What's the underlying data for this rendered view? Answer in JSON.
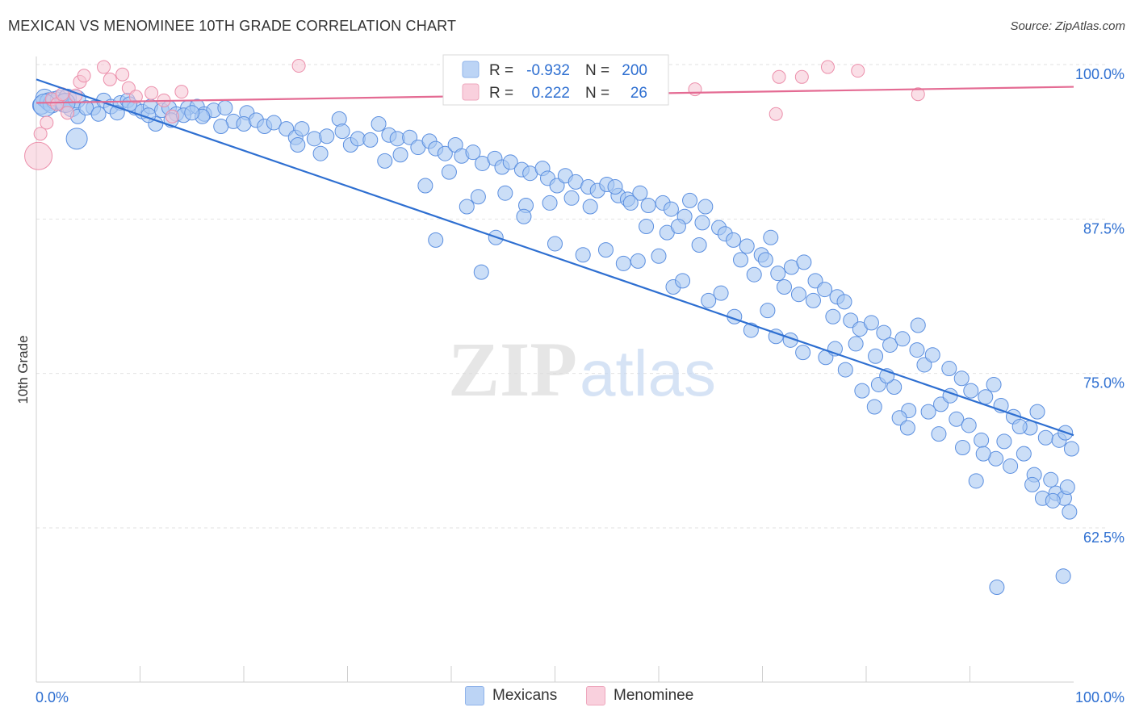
{
  "title": "MEXICAN VS MENOMINEE 10TH GRADE CORRELATION CHART",
  "source": "Source: ZipAtlas.com",
  "watermark": {
    "zip": "ZIP",
    "atlas": "atlas"
  },
  "colors": {
    "blue_fill": "#a9c8f2",
    "blue_stroke": "#5b8fe0",
    "blue_line": "#2e6fd1",
    "pink_fill": "#f6c4d4",
    "pink_stroke": "#ec8fab",
    "pink_line": "#e46b93",
    "axis_text": "#2e6fd1",
    "grid": "#e2e2e2"
  },
  "legend": {
    "r_label": "R =",
    "n_label": "N =",
    "rows": [
      {
        "series": "Mexicans",
        "r": "-0.932",
        "n": "200"
      },
      {
        "series": "Menominee",
        "r": "0.222",
        "n": "26"
      }
    ]
  },
  "bottom_legend": [
    "Mexicans",
    "Menominee"
  ],
  "chart_data": {
    "type": "scatter",
    "title": "MEXICAN VS MENOMINEE 10TH GRADE CORRELATION CHART",
    "xlabel": "",
    "ylabel": "10th Grade",
    "xlim": [
      0,
      100
    ],
    "ylim": [
      50,
      100
    ],
    "x_tick_labels": [
      "0.0%",
      "100.0%"
    ],
    "y_ticks": [
      62.5,
      75.0,
      87.5,
      100.0
    ],
    "y_tick_labels": [
      "62.5%",
      "75.0%",
      "87.5%",
      "100.0%"
    ],
    "grid": true,
    "legend_position": "top-center",
    "series": [
      {
        "name": "Mexicans",
        "color": "#a9c8f2",
        "trend": {
          "x": [
            0,
            100
          ],
          "y": [
            98.8,
            70.0
          ]
        },
        "points": [
          [
            0.5,
            96.7
          ],
          [
            0.8,
            97.3
          ],
          [
            1.2,
            97.0
          ],
          [
            1.5,
            96.8
          ],
          [
            1.8,
            97.1
          ],
          [
            2.2,
            97.2
          ],
          [
            2.6,
            96.9
          ],
          [
            3.0,
            97.3
          ],
          [
            3.4,
            96.5
          ],
          [
            3.9,
            97.2
          ],
          [
            5.5,
            96.5
          ],
          [
            6.5,
            97.1
          ],
          [
            7.2,
            96.6
          ],
          [
            8.1,
            96.9
          ],
          [
            8.8,
            97.1
          ],
          [
            9.5,
            96.5
          ],
          [
            10.2,
            96.2
          ],
          [
            11.0,
            96.6
          ],
          [
            12.1,
            96.3
          ],
          [
            12.8,
            96.5
          ],
          [
            13.5,
            96.0
          ],
          [
            14.6,
            96.5
          ],
          [
            15.5,
            96.6
          ],
          [
            16.2,
            96.0
          ],
          [
            17.1,
            96.3
          ],
          [
            18.2,
            96.5
          ],
          [
            19.0,
            95.4
          ],
          [
            20.3,
            96.1
          ],
          [
            20.0,
            95.2
          ],
          [
            21.2,
            95.5
          ],
          [
            22.0,
            95.0
          ],
          [
            22.9,
            95.3
          ],
          [
            24.1,
            94.8
          ],
          [
            25.0,
            94.1
          ],
          [
            25.6,
            94.8
          ],
          [
            26.8,
            94.0
          ],
          [
            28.0,
            94.2
          ],
          [
            29.2,
            95.6
          ],
          [
            29.5,
            94.6
          ],
          [
            30.3,
            93.5
          ],
          [
            31.0,
            94.0
          ],
          [
            32.2,
            93.9
          ],
          [
            33.0,
            95.2
          ],
          [
            34.0,
            94.3
          ],
          [
            34.8,
            94.0
          ],
          [
            36.0,
            94.1
          ],
          [
            36.8,
            93.3
          ],
          [
            37.9,
            93.8
          ],
          [
            38.5,
            93.2
          ],
          [
            39.4,
            92.8
          ],
          [
            40.4,
            93.5
          ],
          [
            41.0,
            92.6
          ],
          [
            42.1,
            92.9
          ],
          [
            43.0,
            92.0
          ],
          [
            44.2,
            92.4
          ],
          [
            44.9,
            91.7
          ],
          [
            45.7,
            92.1
          ],
          [
            46.8,
            91.5
          ],
          [
            47.6,
            91.2
          ],
          [
            48.8,
            91.6
          ],
          [
            49.3,
            90.8
          ],
          [
            50.2,
            90.2
          ],
          [
            51.0,
            91.0
          ],
          [
            52.0,
            90.5
          ],
          [
            53.2,
            90.1
          ],
          [
            54.1,
            89.8
          ],
          [
            55.0,
            90.3
          ],
          [
            56.1,
            89.4
          ],
          [
            57.0,
            89.1
          ],
          [
            58.2,
            89.6
          ],
          [
            59.0,
            88.6
          ],
          [
            60.4,
            88.8
          ],
          [
            61.2,
            88.3
          ],
          [
            62.5,
            87.7
          ],
          [
            63.0,
            89.0
          ],
          [
            64.2,
            87.2
          ],
          [
            65.8,
            86.8
          ],
          [
            66.4,
            86.3
          ],
          [
            67.2,
            85.8
          ],
          [
            68.5,
            85.3
          ],
          [
            69.9,
            84.6
          ],
          [
            70.3,
            84.2
          ],
          [
            71.5,
            83.1
          ],
          [
            72.8,
            83.6
          ],
          [
            74.0,
            84.0
          ],
          [
            75.1,
            82.5
          ],
          [
            76.0,
            81.8
          ],
          [
            77.2,
            81.2
          ],
          [
            78.5,
            79.3
          ],
          [
            79.4,
            78.6
          ],
          [
            80.5,
            79.1
          ],
          [
            81.7,
            78.3
          ],
          [
            82.3,
            77.3
          ],
          [
            83.5,
            77.8
          ],
          [
            84.9,
            76.9
          ],
          [
            85.6,
            75.7
          ],
          [
            86.4,
            76.5
          ],
          [
            88.0,
            75.4
          ],
          [
            89.2,
            74.6
          ],
          [
            90.1,
            73.6
          ],
          [
            91.5,
            73.1
          ],
          [
            92.3,
            74.1
          ],
          [
            93.0,
            72.4
          ],
          [
            94.2,
            71.5
          ],
          [
            95.8,
            70.6
          ],
          [
            96.5,
            71.9
          ],
          [
            97.3,
            69.8
          ],
          [
            98.6,
            69.6
          ],
          [
            99.2,
            70.2
          ],
          [
            99.8,
            68.9
          ],
          [
            11.5,
            95.2
          ],
          [
            16.0,
            95.8
          ],
          [
            25.2,
            93.5
          ],
          [
            27.4,
            92.8
          ],
          [
            33.6,
            92.2
          ],
          [
            35.1,
            92.7
          ],
          [
            37.5,
            90.2
          ],
          [
            39.8,
            91.3
          ],
          [
            41.5,
            88.5
          ],
          [
            42.6,
            89.3
          ],
          [
            45.2,
            89.6
          ],
          [
            47.2,
            88.6
          ],
          [
            49.5,
            88.8
          ],
          [
            51.6,
            89.2
          ],
          [
            53.4,
            88.5
          ],
          [
            55.8,
            90.1
          ],
          [
            57.3,
            88.8
          ],
          [
            58.8,
            86.9
          ],
          [
            60.8,
            86.4
          ],
          [
            61.9,
            86.9
          ],
          [
            63.9,
            85.4
          ],
          [
            64.5,
            88.5
          ],
          [
            67.9,
            84.2
          ],
          [
            69.2,
            83.0
          ],
          [
            70.8,
            86.0
          ],
          [
            72.1,
            82.0
          ],
          [
            73.5,
            81.4
          ],
          [
            74.9,
            80.9
          ],
          [
            76.8,
            79.6
          ],
          [
            77.9,
            80.8
          ],
          [
            79.0,
            77.4
          ],
          [
            80.9,
            76.4
          ],
          [
            81.2,
            74.1
          ],
          [
            82.7,
            73.9
          ],
          [
            84.1,
            72.0
          ],
          [
            85.0,
            78.9
          ],
          [
            87.2,
            72.5
          ],
          [
            88.7,
            71.3
          ],
          [
            89.9,
            70.8
          ],
          [
            91.1,
            69.6
          ],
          [
            92.5,
            68.1
          ],
          [
            93.9,
            67.5
          ],
          [
            95.2,
            68.5
          ],
          [
            96.2,
            66.8
          ],
          [
            97.8,
            66.4
          ],
          [
            98.3,
            65.3
          ],
          [
            99.1,
            64.9
          ],
          [
            99.6,
            63.8
          ],
          [
            99.0,
            58.6
          ],
          [
            92.6,
            57.7
          ],
          [
            38.5,
            85.8
          ],
          [
            42.9,
            83.2
          ],
          [
            44.3,
            86.0
          ],
          [
            47.0,
            87.7
          ],
          [
            50.0,
            85.5
          ],
          [
            52.7,
            84.6
          ],
          [
            54.9,
            85.0
          ],
          [
            56.6,
            83.9
          ],
          [
            58.0,
            84.1
          ],
          [
            60.0,
            84.5
          ],
          [
            61.4,
            82.0
          ],
          [
            62.3,
            82.5
          ],
          [
            64.8,
            80.9
          ],
          [
            66.0,
            81.5
          ],
          [
            67.3,
            79.6
          ],
          [
            68.9,
            78.5
          ],
          [
            70.5,
            80.1
          ],
          [
            71.3,
            78.0
          ],
          [
            72.7,
            77.7
          ],
          [
            73.9,
            76.7
          ],
          [
            76.1,
            76.3
          ],
          [
            77.0,
            77.0
          ],
          [
            78.0,
            75.3
          ],
          [
            79.6,
            73.6
          ],
          [
            80.8,
            72.3
          ],
          [
            82.0,
            74.8
          ],
          [
            83.2,
            71.4
          ],
          [
            84.0,
            70.6
          ],
          [
            86.0,
            71.9
          ],
          [
            87.0,
            70.1
          ],
          [
            88.1,
            73.2
          ],
          [
            89.3,
            69.0
          ],
          [
            90.6,
            66.3
          ],
          [
            91.3,
            68.5
          ],
          [
            93.3,
            69.5
          ],
          [
            94.8,
            70.7
          ],
          [
            96.0,
            66.0
          ],
          [
            97.0,
            64.9
          ],
          [
            98.0,
            64.7
          ],
          [
            99.4,
            65.8
          ],
          [
            4.0,
            95.8
          ],
          [
            4.8,
            96.5
          ],
          [
            6.0,
            96.0
          ],
          [
            7.8,
            96.1
          ],
          [
            9.0,
            96.8
          ],
          [
            10.8,
            95.9
          ],
          [
            13.0,
            95.5
          ],
          [
            14.2,
            95.9
          ],
          [
            15.0,
            96.1
          ],
          [
            17.8,
            95.0
          ]
        ],
        "sizes_note": "a few larger points near x 0-4"
      },
      {
        "name": "Menominee",
        "color": "#f6c4d4",
        "trend": {
          "x": [
            0,
            100
          ],
          "y": [
            96.9,
            98.2
          ]
        },
        "points": [
          [
            0.4,
            94.4
          ],
          [
            1.0,
            95.3
          ],
          [
            1.5,
            97.2
          ],
          [
            2.0,
            96.8
          ],
          [
            2.5,
            97.6
          ],
          [
            3.0,
            96.1
          ],
          [
            3.8,
            97.5
          ],
          [
            4.2,
            98.6
          ],
          [
            4.6,
            99.1
          ],
          [
            6.5,
            99.8
          ],
          [
            7.1,
            98.8
          ],
          [
            8.3,
            99.2
          ],
          [
            8.9,
            98.1
          ],
          [
            9.6,
            97.4
          ],
          [
            11.1,
            97.7
          ],
          [
            12.3,
            97.1
          ],
          [
            13.1,
            95.8
          ],
          [
            14.0,
            97.8
          ],
          [
            25.3,
            99.9
          ],
          [
            63.5,
            98.0
          ],
          [
            71.3,
            96.0
          ],
          [
            71.6,
            99.0
          ],
          [
            73.8,
            99.0
          ],
          [
            76.3,
            99.8
          ],
          [
            79.2,
            99.5
          ],
          [
            85.0,
            97.6
          ]
        ]
      }
    ]
  }
}
